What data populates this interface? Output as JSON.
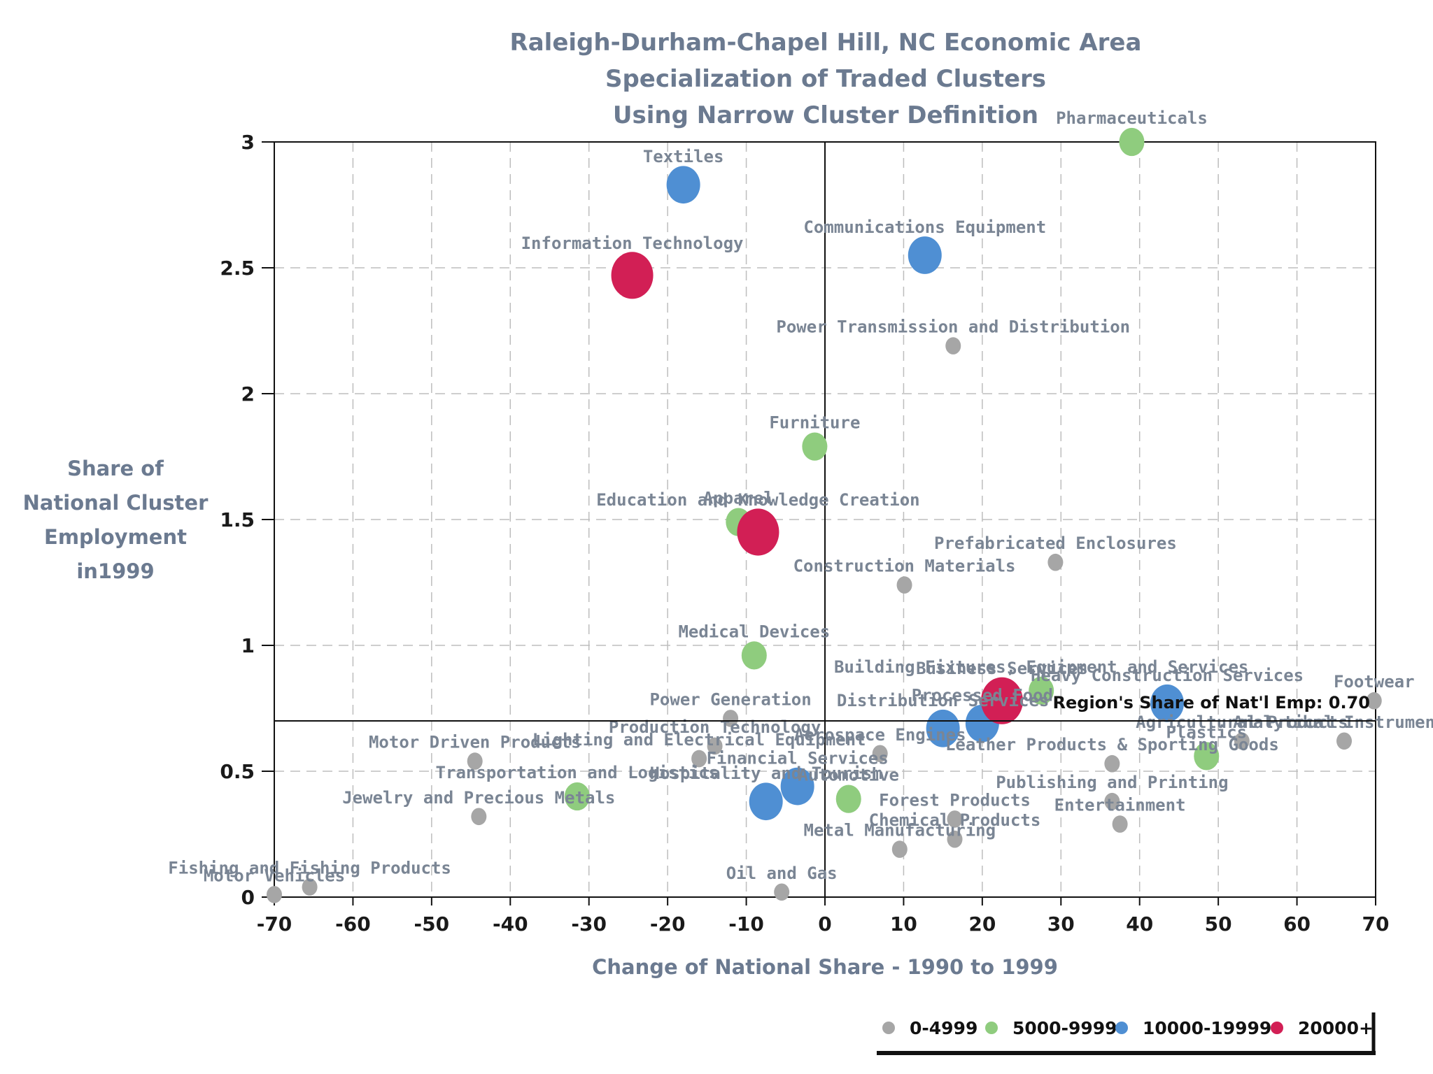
{
  "chart_data": {
    "type": "scatter",
    "title": [
      "Raleigh-Durham-Chapel Hill, NC Economic Area",
      "Specialization of Traded Clusters",
      "Using Narrow Cluster Definition"
    ],
    "xlabel": "Change of National Share - 1990 to 1999",
    "ylabel": [
      "Share of",
      "National Cluster",
      "Employment",
      "in1999"
    ],
    "xlim": [
      -70,
      70
    ],
    "ylim": [
      0,
      3
    ],
    "xticks": [
      -70,
      -60,
      -50,
      -40,
      -30,
      -20,
      -10,
      0,
      10,
      20,
      30,
      40,
      50,
      60,
      70
    ],
    "yticks": [
      0,
      0.5,
      1,
      1.5,
      2,
      2.5,
      3
    ],
    "ytick_labels": [
      "0",
      "0.5",
      "1",
      "1.5",
      "2",
      "2.5",
      "3"
    ],
    "grid": true,
    "reference_line": {
      "y": 0.7,
      "label": "Region's Share of Nat'l Emp: 0.70"
    },
    "colors": {
      "0-4999": "#a6a6a6",
      "5000-9999": "#8fcc7e",
      "10000-19999": "#4f8fd3",
      "20000+": "#d21f55"
    },
    "legend": [
      {
        "label": "0-4999",
        "category": "0-4999"
      },
      {
        "label": "5000-9999",
        "category": "5000-9999"
      },
      {
        "label": "10000-19999",
        "category": "10000-19999"
      },
      {
        "label": "20000+",
        "category": "20000+"
      }
    ],
    "legend_position": "bottom-right",
    "points": [
      {
        "label": "Pharmaceuticals",
        "x": 39,
        "y": 3.0,
        "category": "5000-9999"
      },
      {
        "label": "Textiles",
        "x": -18,
        "y": 2.83,
        "category": "10000-19999"
      },
      {
        "label": "Communications Equipment",
        "x": 12.7,
        "y": 2.55,
        "category": "10000-19999"
      },
      {
        "label": "Information Technology",
        "x": -24.5,
        "y": 2.47,
        "category": "20000+"
      },
      {
        "label": "Power Transmission and Distribution",
        "x": 16.3,
        "y": 2.19,
        "category": "0-4999"
      },
      {
        "label": "Furniture",
        "x": -1.3,
        "y": 1.79,
        "category": "5000-9999"
      },
      {
        "label": "Apparel",
        "x": -11,
        "y": 1.49,
        "category": "5000-9999"
      },
      {
        "label": "Education and Knowledge Creation",
        "x": -8.5,
        "y": 1.45,
        "category": "20000+"
      },
      {
        "label": "Prefabricated Enclosures",
        "x": 29.3,
        "y": 1.33,
        "category": "0-4999"
      },
      {
        "label": "Construction Materials",
        "x": 10.1,
        "y": 1.24,
        "category": "0-4999"
      },
      {
        "label": "Medical Devices",
        "x": -9,
        "y": 0.96,
        "category": "5000-9999"
      },
      {
        "label": "Building Fixtures, Equipment and Services",
        "x": 27.5,
        "y": 0.82,
        "category": "5000-9999"
      },
      {
        "label": "Business Services",
        "x": 22.5,
        "y": 0.78,
        "category": "20000+"
      },
      {
        "label": "Heavy Construction Services",
        "x": 43.5,
        "y": 0.77,
        "category": "10000-19999"
      },
      {
        "label": "Power Generation",
        "x": -12,
        "y": 0.71,
        "category": "0-4999"
      },
      {
        "label": "Distribution Services",
        "x": 15,
        "y": 0.67,
        "category": "10000-19999"
      },
      {
        "label": "Processed Food",
        "x": 20,
        "y": 0.69,
        "category": "10000-19999"
      },
      {
        "label": "Production Technology",
        "x": -14,
        "y": 0.6,
        "category": "0-4999"
      },
      {
        "label": "Aerospace Engines",
        "x": 7,
        "y": 0.57,
        "category": "0-4999"
      },
      {
        "label": "Agricultural Products",
        "x": 53,
        "y": 0.62,
        "category": "0-4999"
      },
      {
        "label": "Plastics",
        "x": 48.5,
        "y": 0.56,
        "category": "5000-9999"
      },
      {
        "label": "Analytical Instruments",
        "x": 66,
        "y": 0.62,
        "category": "0-4999"
      },
      {
        "label": "Footwear",
        "x": 69.8,
        "y": 0.78,
        "category": "0-4999"
      },
      {
        "label": "Leather Products & Sporting Goods",
        "x": 36.5,
        "y": 0.53,
        "category": "0-4999"
      },
      {
        "label": "Motor Driven Products",
        "x": -44.5,
        "y": 0.54,
        "category": "0-4999"
      },
      {
        "label": "Lighting and Electrical Equipment",
        "x": -16,
        "y": 0.55,
        "category": "0-4999"
      },
      {
        "label": "Hospitality and Tourism",
        "x": -7.5,
        "y": 0.38,
        "category": "10000-19999"
      },
      {
        "label": "Financial Services",
        "x": -3.5,
        "y": 0.44,
        "category": "10000-19999"
      },
      {
        "label": "Transportation and Logistics",
        "x": -31.5,
        "y": 0.4,
        "category": "5000-9999"
      },
      {
        "label": "Automotive",
        "x": 3,
        "y": 0.39,
        "category": "5000-9999"
      },
      {
        "label": "Jewelry and Precious Metals",
        "x": -44,
        "y": 0.32,
        "category": "0-4999"
      },
      {
        "label": "Publishing and Printing",
        "x": 36.5,
        "y": 0.38,
        "category": "0-4999"
      },
      {
        "label": "Forest Products",
        "x": 16.5,
        "y": 0.31,
        "category": "0-4999"
      },
      {
        "label": "Entertainment",
        "x": 37.5,
        "y": 0.29,
        "category": "0-4999"
      },
      {
        "label": "Chemical Products",
        "x": 16.5,
        "y": 0.23,
        "category": "0-4999"
      },
      {
        "label": "Metal Manufacturing",
        "x": 9.5,
        "y": 0.19,
        "category": "0-4999"
      },
      {
        "label": "Oil and Gas",
        "x": -5.5,
        "y": 0.02,
        "category": "0-4999"
      },
      {
        "label": "Fishing and Fishing Products",
        "x": -65.5,
        "y": 0.04,
        "category": "0-4999"
      },
      {
        "label": "Motor Vehicles",
        "x": -70,
        "y": 0.01,
        "category": "0-4999"
      }
    ]
  }
}
